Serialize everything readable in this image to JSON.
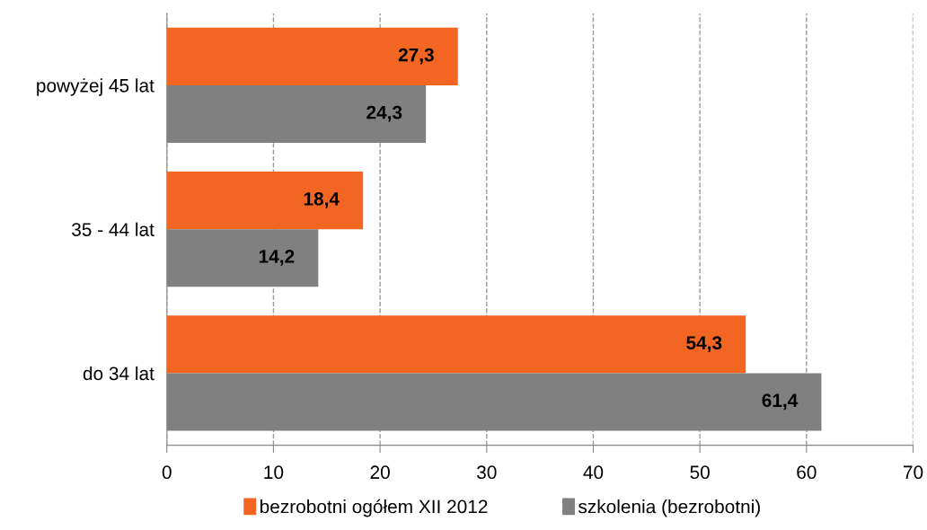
{
  "chart_data": {
    "type": "bar",
    "orientation": "horizontal",
    "categories": [
      "powyżej 45 lat",
      "35 - 44 lat",
      "do 34 lat"
    ],
    "series": [
      {
        "name": "bezrobotni ogółem XII 2012",
        "color": "#f26522",
        "values": [
          27.3,
          18.4,
          54.3
        ],
        "value_labels": [
          "27,3",
          "18,4",
          "54,3"
        ]
      },
      {
        "name": "szkolenia (bezrobotni)",
        "color": "#808080",
        "values": [
          24.3,
          14.2,
          61.4
        ],
        "value_labels": [
          "24,3",
          "14,2",
          "61,4"
        ]
      }
    ],
    "xlim": [
      0,
      70
    ],
    "xticks": [
      0,
      10,
      20,
      30,
      40,
      50,
      60,
      70
    ],
    "grid": "x",
    "legend": "bottom"
  }
}
